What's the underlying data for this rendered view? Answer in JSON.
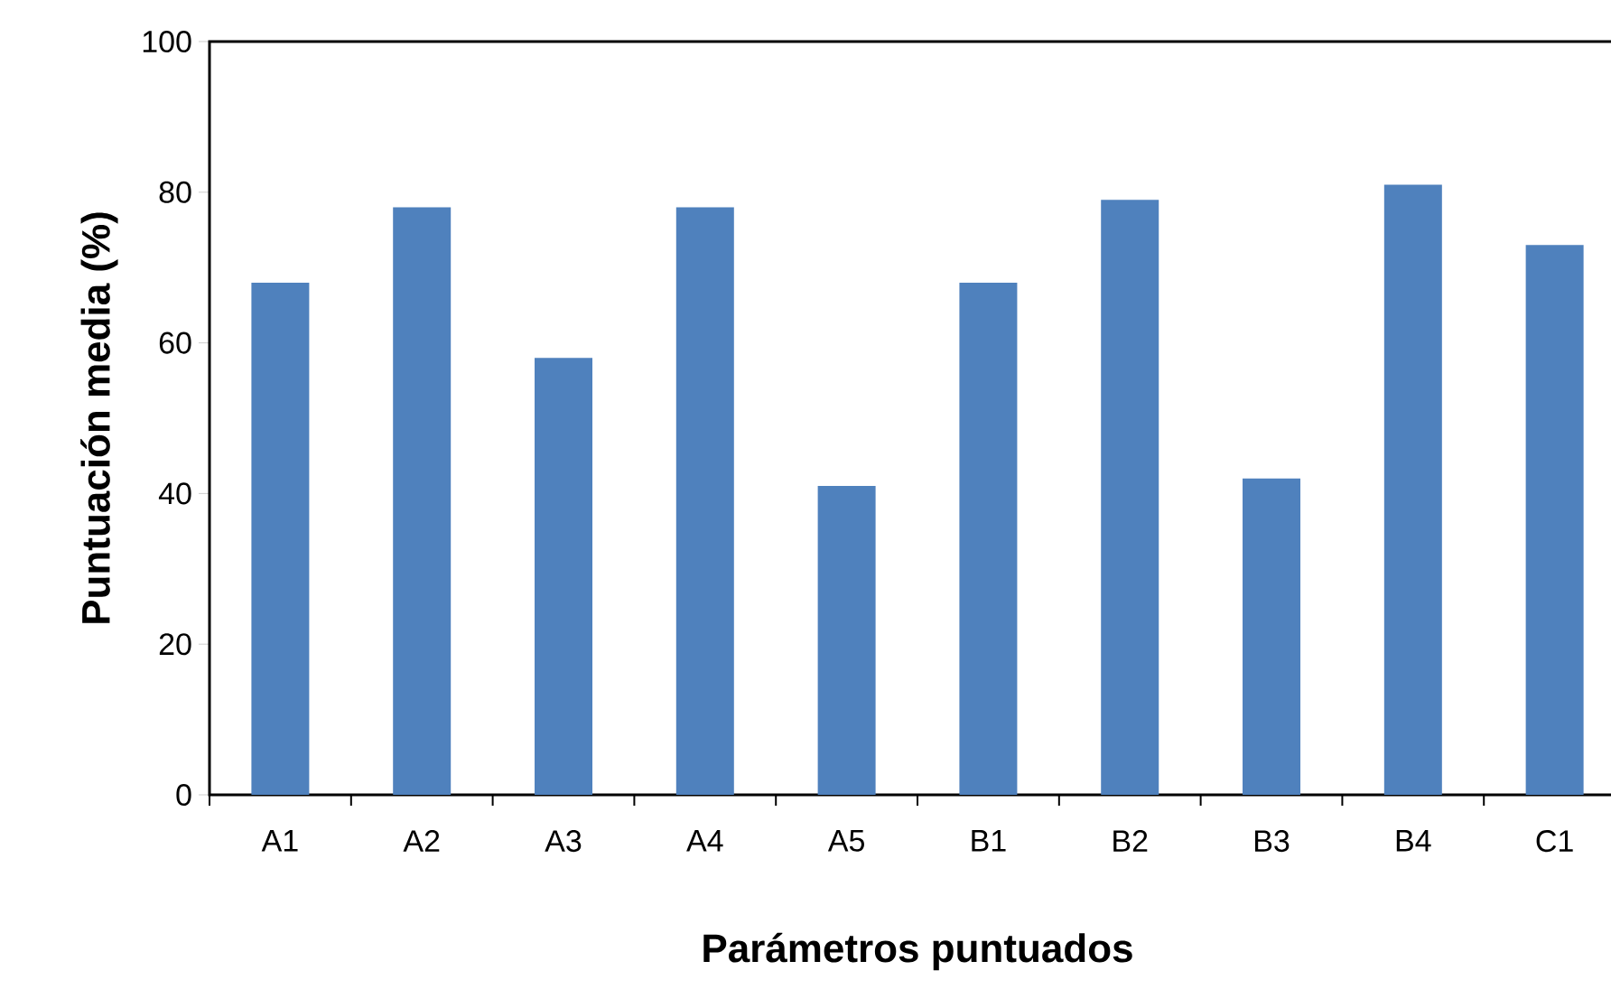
{
  "chart_data": {
    "type": "bar",
    "xlabel": "Parámetros puntuados",
    "ylabel": "Puntuación media (%)",
    "categories": [
      "A1",
      "A2",
      "A3",
      "A4",
      "A5",
      "B1",
      "B2",
      "B3",
      "B4",
      "C1"
    ],
    "values": [
      68,
      78,
      58,
      78,
      41,
      68,
      79,
      42,
      81,
      73
    ],
    "color": "#4f81bd",
    "ylim": [
      0,
      100
    ],
    "yticks": [
      0,
      20,
      40,
      60,
      80,
      100
    ]
  }
}
